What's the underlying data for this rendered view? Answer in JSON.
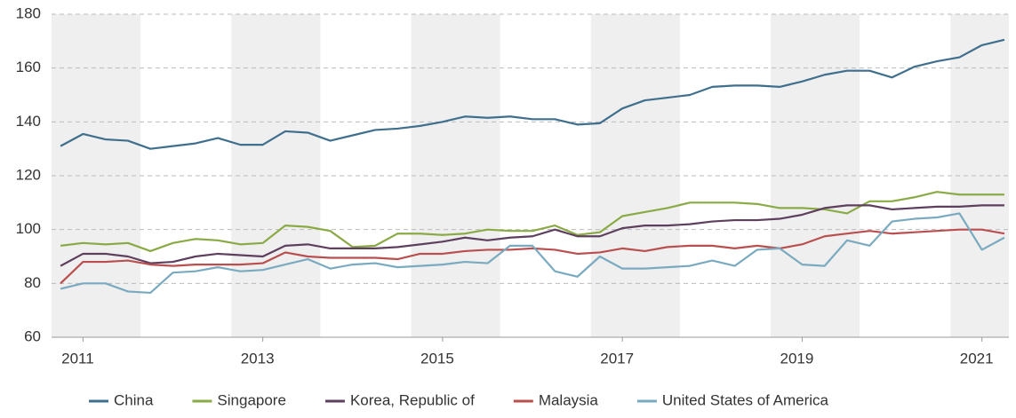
{
  "chart_data": {
    "type": "line",
    "x": [
      2010.75,
      2011,
      2011.25,
      2011.5,
      2011.75,
      2012,
      2012.25,
      2012.5,
      2012.75,
      2013,
      2013.25,
      2013.5,
      2013.75,
      2014,
      2014.25,
      2014.5,
      2014.75,
      2015,
      2015.25,
      2015.5,
      2015.75,
      2016,
      2016.25,
      2016.5,
      2016.75,
      2017,
      2017.25,
      2017.5,
      2017.75,
      2018,
      2018.25,
      2018.5,
      2018.75,
      2019,
      2019.25,
      2019.5,
      2019.75,
      2020,
      2020.25,
      2020.5,
      2020.75,
      2021,
      2021.25
    ],
    "series": [
      {
        "name": "China",
        "color": "#3f6f8c",
        "values": [
          131,
          135.5,
          133.5,
          133,
          130,
          131,
          132,
          134,
          131.5,
          131.5,
          136.5,
          136,
          133,
          135,
          137,
          137.5,
          138.5,
          140,
          142,
          141.5,
          142,
          141,
          141,
          139,
          139.5,
          145,
          148,
          149,
          150,
          153,
          153.5,
          153.5,
          153,
          155,
          157.5,
          159,
          159,
          156.5,
          160.5,
          162.5,
          164,
          168.5,
          170.5
        ]
      },
      {
        "name": "Singapore",
        "color": "#8aaa45",
        "values": [
          94,
          95,
          94.5,
          95,
          92,
          95,
          96.5,
          96,
          94.5,
          95,
          101.5,
          101,
          99.5,
          93.5,
          94,
          98.5,
          98.5,
          98,
          98.5,
          100,
          99.5,
          99.5,
          101.5,
          98,
          99,
          105,
          106.5,
          108,
          110,
          110,
          110,
          109.5,
          108,
          108,
          107.5,
          106,
          110.5,
          110.5,
          112,
          114,
          113,
          113,
          113
        ]
      },
      {
        "name": "Korea, Republic of",
        "color": "#5e3f5e",
        "values": [
          86.5,
          91,
          91,
          90,
          87.5,
          88,
          90,
          91,
          90.5,
          90,
          94,
          94.5,
          93,
          93,
          93,
          93.5,
          94.5,
          95.5,
          97,
          96,
          97,
          97.5,
          100,
          97.5,
          97.5,
          100.5,
          101.5,
          101.5,
          102,
          103,
          103.5,
          103.5,
          104,
          105.5,
          108,
          109,
          109,
          107.5,
          108,
          108.5,
          108.5,
          109,
          109
        ]
      },
      {
        "name": "Malaysia",
        "color": "#b94f4f",
        "values": [
          80,
          88,
          88,
          88.5,
          87,
          86.5,
          87,
          87,
          87,
          87.5,
          91.5,
          90,
          89.5,
          89.5,
          89.5,
          89,
          91,
          91,
          92,
          92.5,
          92.5,
          93,
          92.5,
          91,
          91.5,
          93,
          92,
          93.5,
          94,
          94,
          93,
          94,
          93,
          94.5,
          97.5,
          98.5,
          99.5,
          98.5,
          99,
          99.5,
          100,
          100,
          98.5
        ]
      },
      {
        "name": "United States of America",
        "color": "#7aaabf",
        "values": [
          78,
          80,
          80,
          77,
          76.5,
          84,
          84.5,
          86,
          84.5,
          85,
          87,
          89,
          85.5,
          87,
          87.5,
          86,
          86.5,
          87,
          88,
          87.5,
          94,
          94,
          84.5,
          82.5,
          90,
          85.5,
          85.5,
          86,
          86.5,
          88.5,
          86.5,
          92.5,
          93,
          87,
          86.5,
          96,
          94,
          103,
          104,
          104.5,
          106,
          92.5,
          97
        ]
      }
    ],
    "xlim": [
      2010.65,
      2021.3
    ],
    "xticks": [
      2011,
      2013,
      2015,
      2017,
      2019,
      2021
    ],
    "ylim": [
      60,
      180
    ],
    "yticks": [
      60,
      80,
      100,
      120,
      140,
      160,
      180
    ],
    "grid": true,
    "legend": "bottom"
  }
}
